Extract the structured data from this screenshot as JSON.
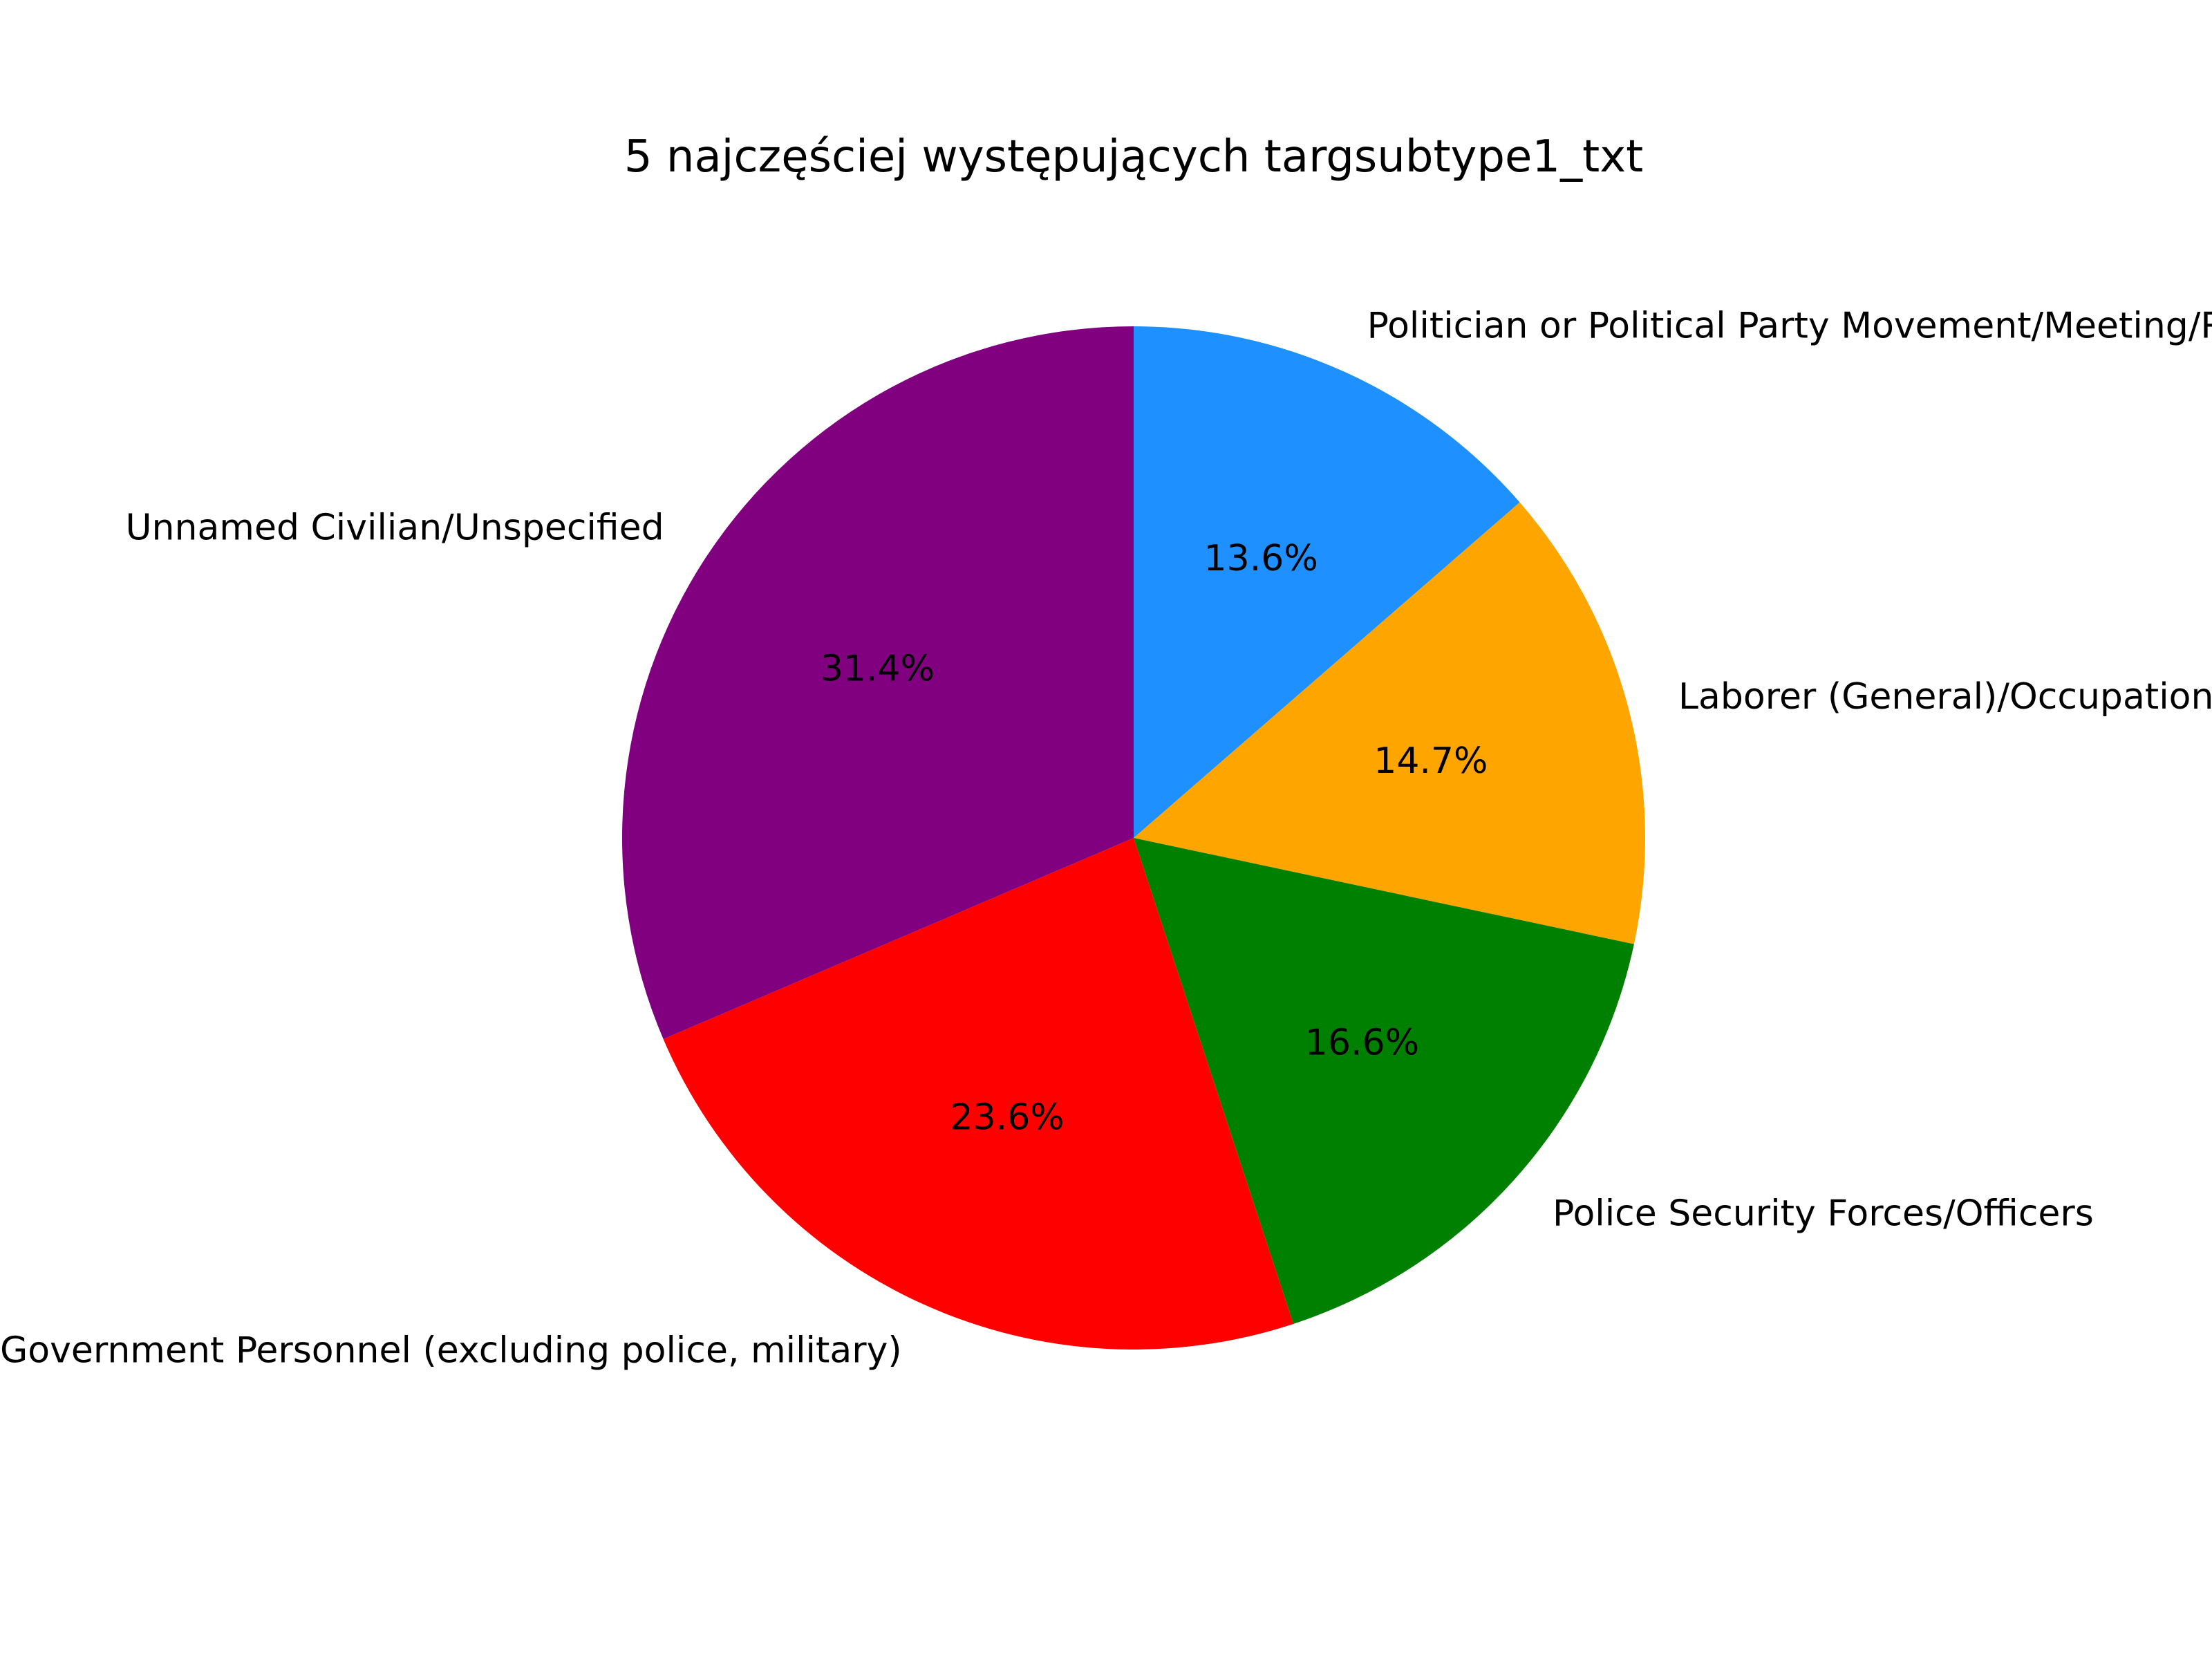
{
  "chart_data": {
    "type": "pie",
    "title": "5 najczęściej występujących targsubtype1_txt",
    "start_angle_deg": 90,
    "direction": "clockwise",
    "slices": [
      {
        "label": "Politician or Political Party Movement/Meeting/Rally",
        "value": 13.6,
        "pct_label": "13.6%",
        "color": "#1e90ff"
      },
      {
        "label": "Laborer (General)/Occupation Identified",
        "value": 14.7,
        "pct_label": "14.7%",
        "color": "#ffa500"
      },
      {
        "label": "Police Security Forces/Officers",
        "value": 16.6,
        "pct_label": "16.6%",
        "color": "#008000"
      },
      {
        "label": "Government Personnel (excluding police, military)",
        "value": 23.6,
        "pct_label": "23.6%",
        "color": "#ff0000"
      },
      {
        "label": "Unnamed Civilian/Unspecified",
        "value": 31.4,
        "pct_label": "31.4%",
        "color": "#800080"
      }
    ]
  }
}
